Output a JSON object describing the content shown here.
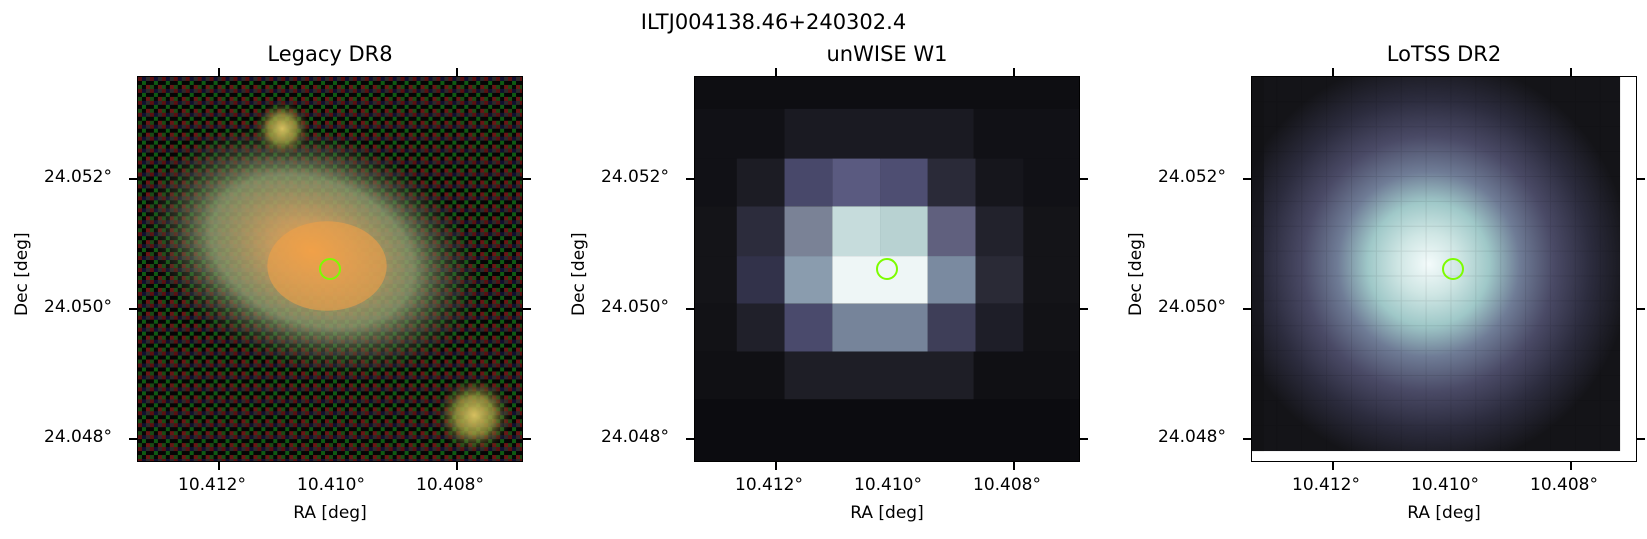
{
  "figure": {
    "title": "ILTJ004138.46+240302.4",
    "panels": [
      {
        "title": "Legacy DR8",
        "xlabel": "RA [deg]",
        "ylabel": "Dec [deg]",
        "xticks": [
          "10.412°",
          "10.410°",
          "10.408°"
        ],
        "yticks": [
          "24.052°",
          "24.050°",
          "24.048°"
        ]
      },
      {
        "title": "unWISE W1",
        "xlabel": "RA [deg]",
        "ylabel": "Dec [deg]",
        "xticks": [
          "10.412°",
          "10.410°",
          "10.408°"
        ],
        "yticks": [
          "24.052°",
          "24.050°",
          "24.048°"
        ]
      },
      {
        "title": "LoTSS DR2",
        "xlabel": "RA [deg]",
        "ylabel": "Dec [deg]",
        "xticks": [
          "10.412°",
          "10.410°",
          "10.408°"
        ],
        "yticks": [
          "24.052°",
          "24.050°",
          "24.048°"
        ]
      }
    ]
  },
  "colors": {
    "marker": "#7CFC00"
  },
  "icons": [
    "source-marker-circle-icon"
  ]
}
